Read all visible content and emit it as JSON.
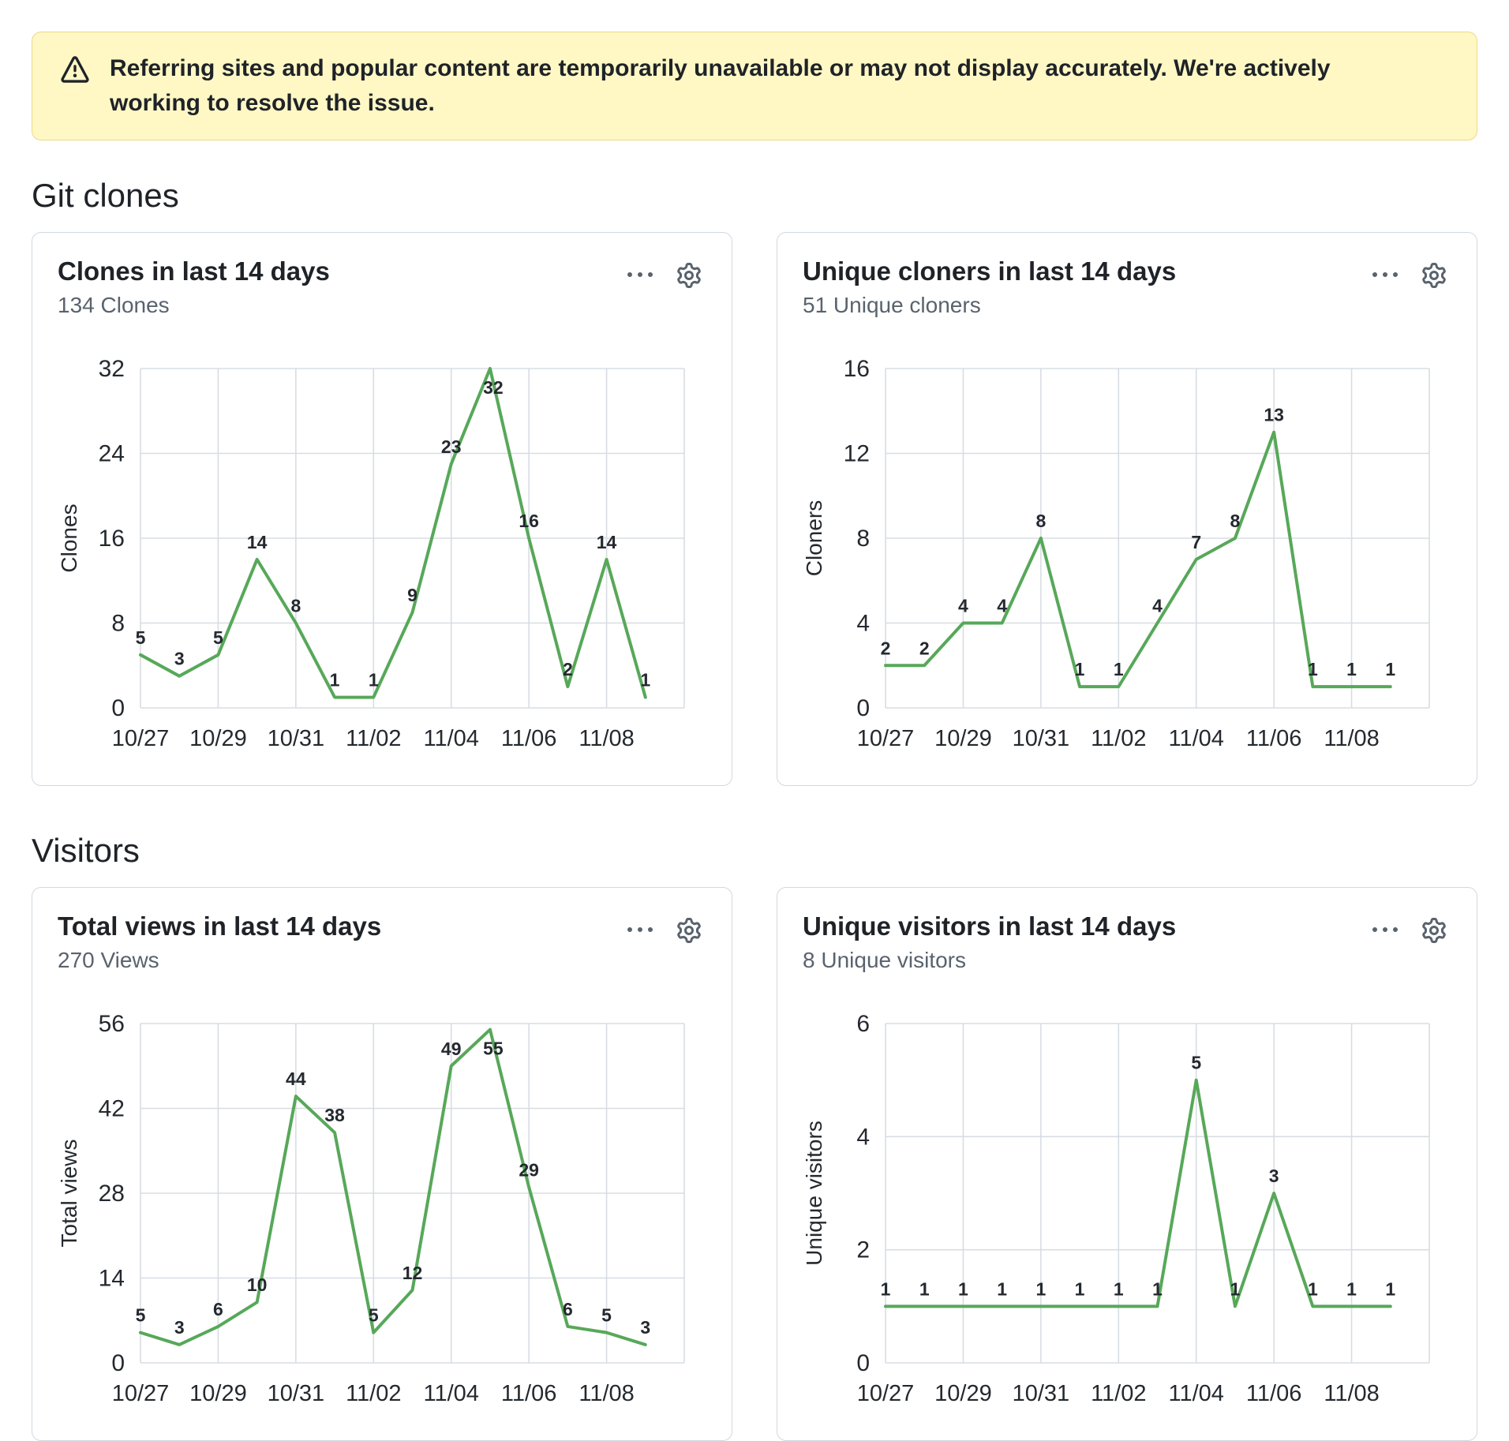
{
  "banner": {
    "text": "Referring sites and popular content are temporarily unavailable or may not display accurately. We're actively working to resolve the issue.",
    "icon": "alert-icon",
    "background": "#fff8c5",
    "border_color": "#d4a72c66"
  },
  "sections": {
    "git_clones": {
      "heading": "Git clones"
    },
    "visitors": {
      "heading": "Visitors"
    }
  },
  "cards": [
    {
      "title": "Clones in last 14 days",
      "subtitle": "134 Clones"
    },
    {
      "title": "Unique cloners in last 14 days",
      "subtitle": "51 Unique cloners"
    },
    {
      "title": "Total views in last 14 days",
      "subtitle": "270 Views"
    },
    {
      "title": "Unique visitors in last 14 days",
      "subtitle": "8 Unique visitors"
    }
  ],
  "icons": {
    "card_menu": "kebab-horizontal-icon",
    "card_settings": "gear-icon",
    "banner_warning": "alert-icon"
  },
  "colors": {
    "line_green": "#57a859",
    "grid": "#d8dde3",
    "axis_text": "#24292f",
    "muted_text": "#59636e"
  },
  "chart_data": [
    {
      "type": "line",
      "title": "Clones in last 14 days",
      "x": [
        "10/27",
        "10/28",
        "10/29",
        "10/30",
        "10/31",
        "11/01",
        "11/02",
        "11/03",
        "11/04",
        "11/05",
        "11/06",
        "11/07",
        "11/08",
        "11/09"
      ],
      "values": [
        5,
        3,
        5,
        14,
        8,
        1,
        1,
        9,
        23,
        32,
        16,
        2,
        14,
        1
      ],
      "ylabel": "Clones",
      "yticks": [
        0,
        8,
        16,
        24,
        32
      ],
      "ylim": [
        0,
        32
      ],
      "xtick_labels": [
        "10/27",
        "10/29",
        "10/31",
        "11/02",
        "11/04",
        "11/06",
        "11/08"
      ],
      "line_color": "#57a859",
      "grid": true,
      "legend": "none"
    },
    {
      "type": "line",
      "title": "Unique cloners in last 14 days",
      "x": [
        "10/27",
        "10/28",
        "10/29",
        "10/30",
        "10/31",
        "11/01",
        "11/02",
        "11/03",
        "11/04",
        "11/05",
        "11/06",
        "11/07",
        "11/08",
        "11/09"
      ],
      "values": [
        2,
        2,
        4,
        4,
        8,
        1,
        1,
        4,
        7,
        8,
        13,
        1,
        1,
        1
      ],
      "ylabel": "Cloners",
      "yticks": [
        0,
        4,
        8,
        12,
        16
      ],
      "ylim": [
        0,
        16
      ],
      "xtick_labels": [
        "10/27",
        "10/29",
        "10/31",
        "11/02",
        "11/04",
        "11/06",
        "11/08"
      ],
      "line_color": "#57a859",
      "grid": true,
      "legend": "none"
    },
    {
      "type": "line",
      "title": "Total views in last 14 days",
      "x": [
        "10/27",
        "10/28",
        "10/29",
        "10/30",
        "10/31",
        "11/01",
        "11/02",
        "11/03",
        "11/04",
        "11/05",
        "11/06",
        "11/07",
        "11/08",
        "11/09"
      ],
      "values": [
        5,
        3,
        6,
        10,
        44,
        38,
        5,
        12,
        49,
        55,
        29,
        6,
        5,
        3
      ],
      "visible_point_labels": {
        "10/31": 44,
        "11/01": 38,
        "11/04": 49,
        "11/05": 55,
        "11/06": 29
      },
      "lower_values_estimated_chart_cropped": true,
      "ylabel": "Total views",
      "yticks": [
        0,
        14,
        28,
        42,
        56
      ],
      "ylim": [
        0,
        56
      ],
      "xtick_labels": [
        "10/27",
        "10/29",
        "10/31",
        "11/02",
        "11/04",
        "11/06",
        "11/08"
      ],
      "line_color": "#57a859",
      "grid": true,
      "legend": "none"
    },
    {
      "type": "line",
      "title": "Unique visitors in last 14 days",
      "x": [
        "10/27",
        "10/28",
        "10/29",
        "10/30",
        "10/31",
        "11/01",
        "11/02",
        "11/03",
        "11/04",
        "11/05",
        "11/06",
        "11/07",
        "11/08",
        "11/09"
      ],
      "values": [
        1,
        1,
        1,
        1,
        1,
        1,
        1,
        1,
        5,
        1,
        3,
        1,
        1,
        1
      ],
      "visible_point_labels": {
        "11/04": 5,
        "11/06": 3
      },
      "lower_values_estimated_chart_cropped": true,
      "ylabel": "Unique visitors",
      "yticks": [
        0,
        2,
        4,
        6
      ],
      "ylim": [
        0,
        6
      ],
      "xtick_labels": [
        "10/27",
        "10/29",
        "10/31",
        "11/02",
        "11/04",
        "11/06",
        "11/08"
      ],
      "line_color": "#57a859",
      "grid": true,
      "legend": "none"
    }
  ]
}
